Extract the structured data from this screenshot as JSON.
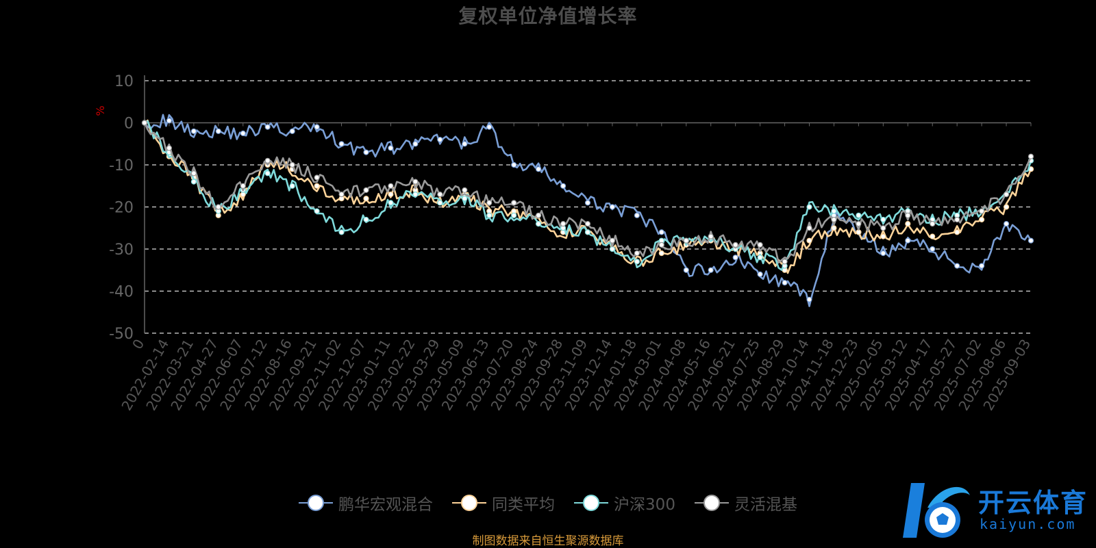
{
  "chart_data": {
    "type": "line",
    "title": "复权单位净值增长率",
    "ylabel": "%",
    "ylim": [
      -50,
      10
    ],
    "yticks": [
      10,
      0,
      -10,
      -20,
      -30,
      -40,
      -50
    ],
    "x_ticks": [
      "0",
      "2022-02-14",
      "2022-03-21",
      "2022-04-27",
      "2022-06-07",
      "2022-07-12",
      "2022-08-16",
      "2022-09-21",
      "2022-11-02",
      "2022-12-07",
      "2023-01-11",
      "2023-02-22",
      "2023-03-29",
      "2023-05-09",
      "2023-06-13",
      "2023-07-20",
      "2023-08-24",
      "2023-09-28",
      "2023-11-09",
      "2023-12-14",
      "2024-01-18",
      "2024-03-01",
      "2024-04-08",
      "2024-05-16",
      "2024-06-21",
      "2024-07-25",
      "2024-08-29",
      "2024-10-14",
      "2024-11-18",
      "2024-12-23",
      "2025-02-05",
      "2025-03-12",
      "2025-04-17",
      "2025-05-27",
      "2025-07-02",
      "2025-08-06",
      "2025-09-03"
    ],
    "grid": "dashed-horizontal",
    "legend_position": "bottom",
    "series": [
      {
        "name": "鹏华宏观混合",
        "color": "#7a9fd6",
        "values": [
          0,
          0.5,
          -2,
          -2,
          -2.5,
          -1,
          -2,
          -1,
          -5,
          -7,
          -6,
          -5,
          -4,
          -5,
          -1,
          -10,
          -11,
          -15,
          -19,
          -20,
          -22,
          -26,
          -35,
          -35,
          -32,
          -36,
          -38,
          -42,
          -22,
          -26,
          -31,
          -28,
          -30,
          -34,
          -34,
          -24,
          -28
        ]
      },
      {
        "name": "同类平均",
        "color": "#ffd49a",
        "values": [
          0,
          -8,
          -13,
          -22,
          -17,
          -10,
          -11,
          -15,
          -18,
          -18,
          -17,
          -16,
          -19,
          -17,
          -21,
          -21,
          -24,
          -26,
          -26,
          -30,
          -33,
          -31,
          -29,
          -28,
          -30,
          -31,
          -35,
          -28,
          -25,
          -26,
          -27,
          -24,
          -27,
          -26,
          -23,
          -20,
          -11
        ]
      },
      {
        "name": "沪深300",
        "color": "#7fdadb",
        "values": [
          0,
          -7,
          -14,
          -21,
          -16,
          -12,
          -15,
          -21,
          -26,
          -23,
          -19,
          -17,
          -19,
          -18,
          -22,
          -22,
          -24,
          -25,
          -26,
          -30,
          -33,
          -28,
          -28,
          -27,
          -30,
          -32,
          -34,
          -20,
          -21,
          -22,
          -23,
          -21,
          -23,
          -22,
          -21,
          -17,
          -9
        ]
      },
      {
        "name": "灵活混基",
        "color": "#9a9a9a",
        "values": [
          0,
          -6,
          -12,
          -20,
          -15,
          -9,
          -10,
          -13,
          -17,
          -16,
          -15,
          -14,
          -17,
          -16,
          -19,
          -19,
          -22,
          -24,
          -24,
          -28,
          -31,
          -29,
          -28,
          -27,
          -29,
          -29,
          -33,
          -25,
          -23,
          -24,
          -25,
          -22,
          -24,
          -23,
          -21,
          -17,
          -8
        ]
      }
    ]
  },
  "source_note": "制图数据来自恒生聚源数据库",
  "watermark": {
    "brand": "开云体育",
    "sub": "kaiyun.com"
  }
}
